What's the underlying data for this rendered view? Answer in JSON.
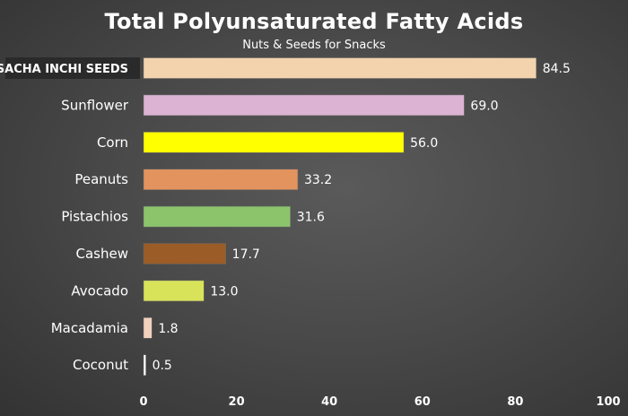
{
  "chart_data": {
    "type": "bar",
    "orientation": "horizontal",
    "title": "Total Polyunsaturated Fatty Acids",
    "subtitle": "Nuts & Seeds for Snacks",
    "categories": [
      "SACHA INCHI SEEDS",
      "Sunflower",
      "Corn",
      "Peanuts",
      "Pistachios",
      "Cashew",
      "Avocado",
      "Macadamia",
      "Coconut"
    ],
    "values": [
      84.5,
      69.0,
      56.0,
      33.2,
      31.6,
      17.7,
      13.0,
      1.8,
      0.5
    ],
    "value_labels": [
      "84.5",
      "69.0",
      "56.0",
      "33.2",
      "31.6",
      "17.7",
      "13.0",
      "1.8",
      "0.5"
    ],
    "colors": [
      "#f3d3ad",
      "#dcb3d3",
      "#ffff00",
      "#e2935e",
      "#8cc46c",
      "#9b5c27",
      "#d8e35a",
      "#f3d0bd",
      "#ffffff"
    ],
    "highlighted_category": "SACHA INCHI SEEDS",
    "xlim": [
      0,
      100
    ],
    "xticks": [
      "0",
      "20",
      "40",
      "60",
      "80",
      "100"
    ],
    "grid": false,
    "legend": "none"
  }
}
